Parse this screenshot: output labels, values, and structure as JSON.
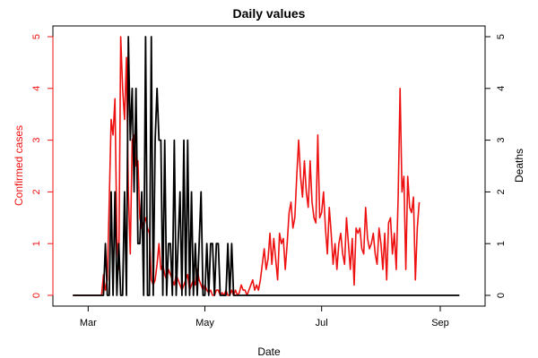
{
  "chart_data": {
    "type": "line",
    "title": "Daily values",
    "xlabel": "Date",
    "ylabel_left": "Confirmed cases",
    "ylabel_right": "Deaths",
    "x_ticks": [
      "Mar",
      "May",
      "Jul",
      "Sep"
    ],
    "x_tick_dates": [
      "2020-03-01",
      "2020-05-01",
      "2020-07-01",
      "2020-09-01"
    ],
    "y_left_ticks": [
      "0",
      "1",
      "2",
      "3",
      "4",
      "5"
    ],
    "y_right_ticks": [
      "0",
      "1",
      "2",
      "3",
      "4",
      "5"
    ],
    "ylim_left": [
      0,
      5
    ],
    "ylim_right": [
      0,
      5
    ],
    "xlim": [
      "2020-02-20",
      "2020-09-16"
    ],
    "grid": false,
    "colors": {
      "cases": "#ee1111",
      "deaths": "#000000",
      "left_axis": "#ee1111",
      "right_axis": "#000000"
    },
    "series": [
      {
        "axis": "left",
        "start_date": "2020-02-22",
        "values": [
          0,
          0,
          0,
          0,
          0,
          0,
          0,
          0,
          0,
          0,
          0,
          0,
          0,
          0,
          0,
          0,
          0.4,
          0.1,
          0.3,
          1.8,
          3.4,
          3.1,
          3.8,
          1.1,
          0.5,
          5.0,
          4.0,
          3.4,
          4.6,
          2.0,
          0.8,
          3.0,
          3.1,
          2.5,
          2.6,
          1.5,
          1.3,
          1.4,
          1.5,
          1.3,
          1.2,
          0.3,
          0.2,
          0.3,
          0.6,
          1.0,
          0.5,
          0.6,
          0.4,
          0.3,
          0.5,
          0.4,
          0.3,
          0.2,
          0.4,
          0.3,
          0.2,
          0.1,
          0.2,
          0.3,
          0.4,
          0.1,
          0.2,
          0.3,
          0.2,
          0.5,
          0.3,
          0.2,
          0.1,
          0.2,
          0.1,
          0.05,
          0.1,
          0,
          0,
          0.1,
          0.1,
          0,
          0.05,
          0,
          0.1,
          0,
          0,
          0.1,
          0,
          0.1,
          0,
          0.05,
          0.2,
          0.1,
          0.1,
          0,
          0.1,
          0.2,
          0.3,
          0.1,
          0.2,
          0.1,
          0.3,
          0.6,
          0.9,
          0.5,
          0.7,
          1.2,
          0.6,
          1.1,
          0.7,
          0.3,
          1.2,
          1.0,
          1.1,
          0.5,
          1.0,
          1.6,
          1.8,
          1.3,
          1.5,
          2.3,
          3.0,
          2.3,
          1.9,
          2.6,
          2.0,
          1.7,
          2.6,
          1.8,
          1.5,
          1.4,
          3.1,
          1.5,
          1.6,
          2.0,
          1.3,
          0.8,
          1.7,
          1.2,
          0.6,
          1.0,
          0.5,
          1.0,
          1.2,
          0.8,
          0.6,
          1.5,
          1.0,
          0.5,
          1.1,
          0.2,
          1.3,
          1.2,
          1.3,
          0.9,
          0.8,
          1.7,
          1.1,
          0.9,
          1.0,
          1.2,
          0.8,
          0.6,
          1.3,
          1.0,
          0.5,
          1.2,
          0.3,
          1.4,
          1.5,
          0.8,
          1.2,
          0.5,
          1.9,
          4.0,
          2.0,
          2.3,
          0.5,
          2.3,
          1.7,
          1.6,
          1.9,
          0.3,
          1.3,
          1.8
        ]
      },
      {
        "axis": "right",
        "start_date": "2020-02-22",
        "values": [
          0,
          0,
          0,
          0,
          0,
          0,
          0,
          0,
          0,
          0,
          0,
          0,
          0,
          0,
          0,
          0,
          0,
          1,
          0,
          0,
          2,
          0,
          2,
          0,
          1,
          0,
          0,
          2,
          0,
          5,
          3,
          4,
          2,
          4,
          1,
          1,
          2,
          0,
          5,
          0,
          0,
          5,
          0,
          3,
          4,
          3,
          3,
          0,
          3,
          0,
          1,
          1,
          0,
          3,
          0,
          1,
          2,
          0,
          3,
          0,
          3,
          0,
          2,
          0,
          1,
          0,
          1,
          2,
          0,
          0,
          1,
          0,
          1,
          1,
          0,
          1,
          1,
          0,
          0,
          0,
          0,
          1,
          0,
          1,
          0,
          0,
          0,
          0,
          0,
          0,
          0,
          0,
          0,
          0,
          0,
          0,
          0,
          0,
          0,
          0,
          0,
          0,
          0,
          0,
          0,
          0,
          0,
          0,
          0,
          0,
          0,
          0,
          0,
          0,
          0,
          0,
          0,
          0,
          0,
          0,
          0,
          0,
          0,
          0,
          0,
          0,
          0,
          0,
          0,
          0,
          0,
          0,
          0,
          0,
          0,
          0,
          0,
          0,
          0,
          0,
          0,
          0,
          0,
          0,
          0,
          0,
          0,
          0,
          0,
          0,
          0,
          0,
          0,
          0,
          0,
          0,
          0,
          0,
          0,
          0,
          0,
          0,
          0,
          0,
          0,
          0,
          0,
          0,
          0,
          0,
          0,
          0,
          0,
          0,
          0,
          0,
          0,
          0,
          0,
          0,
          0,
          0,
          0,
          0,
          0,
          0,
          0,
          0,
          0,
          0,
          0,
          0,
          0,
          0,
          0,
          0,
          0,
          0,
          0,
          0,
          0,
          0,
          0
        ]
      }
    ]
  }
}
